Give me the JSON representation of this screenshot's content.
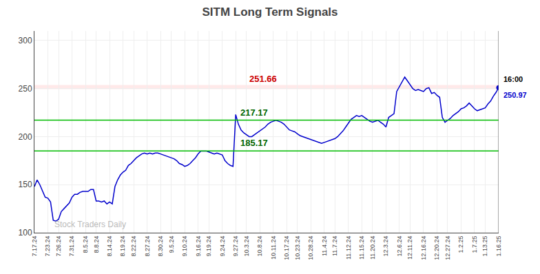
{
  "chart_data": {
    "type": "line",
    "title": "SITM Long Term Signals",
    "categories": [
      "7.17.24",
      null,
      null,
      null,
      null,
      "7.23.24",
      null,
      null,
      null,
      "7.26.24",
      null,
      null,
      null,
      null,
      "7.31.24",
      null,
      null,
      null,
      null,
      "8.5.24",
      null,
      null,
      null,
      "8.8.24",
      null,
      null,
      null,
      null,
      "8.14.24",
      null,
      null,
      null,
      null,
      "8.19.24",
      null,
      null,
      null,
      "8.22.24",
      null,
      null,
      null,
      null,
      "8.27.24",
      null,
      null,
      null,
      null,
      "8.30.24",
      null,
      null,
      null,
      "9.5.24",
      null,
      null,
      null,
      null,
      "9.10.24",
      null,
      null,
      null,
      null,
      "9.16.24",
      null,
      null,
      null,
      "9.19.24",
      null,
      null,
      null,
      null,
      "9.24.24",
      null,
      null,
      null,
      null,
      "9.27.24",
      null,
      null,
      null,
      "10.3.24",
      null,
      null,
      null,
      null,
      "10.8.24",
      null,
      null,
      null,
      null,
      "10.11.24",
      null,
      null,
      null,
      null,
      "10.17.24",
      null,
      null,
      null,
      "10.23.24",
      null,
      null,
      null,
      null,
      "10.28.24",
      null,
      null,
      null,
      null,
      "11.4.24",
      null,
      null,
      null,
      "11.7.24",
      null,
      null,
      null,
      null,
      "11.12.24",
      null,
      null,
      null,
      null,
      "11.15.24",
      null,
      null,
      null,
      "11.20.24",
      null,
      null,
      null,
      null,
      "12.3.24",
      null,
      null,
      null,
      null,
      "12.6.24",
      null,
      null,
      null,
      "12.11.24",
      null,
      null,
      null,
      null,
      "12.16.24",
      null,
      null,
      null,
      null,
      "12.20.24",
      null,
      null,
      null,
      "12.27.24",
      null,
      null,
      null,
      null,
      "1.2.25",
      null,
      null,
      null,
      null,
      "1.7.25",
      null,
      null,
      null,
      "1.13.25",
      null,
      null,
      null,
      null,
      "1.16.25"
    ],
    "series": [
      {
        "color": "#0000cc",
        "values": [
          148,
          155,
          150,
          143,
          137,
          136,
          132,
          113,
          112,
          114,
          122,
          125,
          128,
          131,
          137,
          140,
          140,
          142,
          143,
          143,
          143,
          145,
          145,
          133,
          133,
          132,
          133,
          130,
          132,
          130,
          148,
          155,
          160,
          163,
          165,
          170,
          172,
          175,
          178,
          180,
          182,
          183,
          182,
          183,
          182,
          183,
          183,
          182,
          181,
          180,
          179,
          178,
          177,
          175,
          172,
          171,
          169,
          170,
          172,
          175,
          178,
          182,
          185,
          185,
          185,
          184,
          183,
          182,
          183,
          182,
          181,
          175,
          172,
          170,
          169,
          223,
          213,
          207,
          204,
          202,
          200,
          200,
          202,
          204,
          206,
          208,
          210,
          213,
          215,
          216,
          217,
          216,
          215,
          213,
          210,
          207,
          206,
          205,
          203,
          201,
          200,
          199,
          198,
          197,
          196,
          195,
          194,
          193,
          194,
          195,
          196,
          197,
          198,
          200,
          203,
          206,
          210,
          214,
          218,
          220,
          222,
          221,
          222,
          220,
          218,
          216,
          215,
          216,
          217,
          215,
          213,
          210,
          220,
          222,
          224,
          247,
          252,
          258,
          262,
          258,
          254,
          250,
          248,
          249,
          248,
          247,
          250,
          251,
          245,
          246,
          243,
          241,
          220,
          215,
          217,
          219,
          222,
          224,
          226,
          229,
          230,
          232,
          235,
          232,
          229,
          227,
          228,
          229,
          230,
          234,
          237,
          242,
          246,
          251
        ]
      }
    ],
    "reference_lines": [
      {
        "y": 251.66,
        "color": "#ffaaaa",
        "line_style": "band",
        "label": "251.66",
        "label_color": "#cc0000"
      },
      {
        "y": 217.17,
        "color": "#00bb00",
        "line_style": "solid",
        "label": "217.17",
        "label_color": "#006600"
      },
      {
        "y": 185.17,
        "color": "#00bb00",
        "line_style": "solid",
        "label": "185.17",
        "label_color": "#006600"
      }
    ],
    "watermark": {
      "text": "Stock Traders Daily",
      "color": "#bbbbbb"
    },
    "end_label_time": {
      "text": "16:00",
      "color": "#000000"
    },
    "end_label_price": {
      "text": "250.97",
      "color": "#0000cc"
    },
    "ylim": [
      100,
      310
    ],
    "yticks": [
      100,
      150,
      200,
      250,
      300
    ],
    "grid": true
  }
}
